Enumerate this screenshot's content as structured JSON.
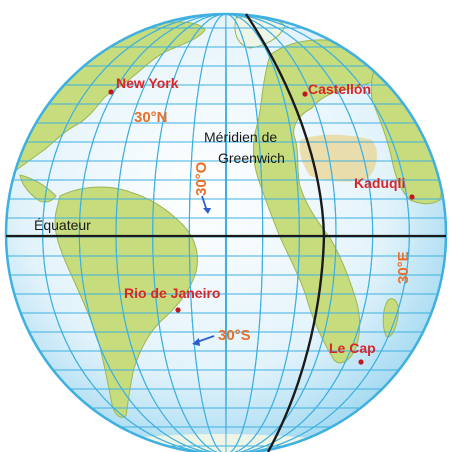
{
  "colors": {
    "ocean": "#dff1fb",
    "ocean_edge": "#a9dcf2",
    "land": "#c7dc7c",
    "land_dark": "#a9c25a",
    "desert": "#e8d38a",
    "grid": "#3fb0e0",
    "axis": "#1a1a1a",
    "city": "#d9262b",
    "coord": "#e8702a",
    "arrow": "#2b5fcf"
  },
  "cities": [
    {
      "id": "new-york",
      "name": "New York"
    },
    {
      "id": "castellon",
      "name": "Castellón"
    },
    {
      "id": "kaduqli",
      "name": "Kaduqli"
    },
    {
      "id": "rio",
      "name": "Rio de Janeiro"
    },
    {
      "id": "le-cap",
      "name": "Le Cap"
    }
  ],
  "labels": {
    "meridian_line1": "Méridien de",
    "meridian_line2": "Greenwich",
    "equator": "Équateur",
    "lat_30n": "30°N",
    "lat_30s": "30°S",
    "lon_30w": "30°O",
    "lon_30e": "30°E"
  }
}
